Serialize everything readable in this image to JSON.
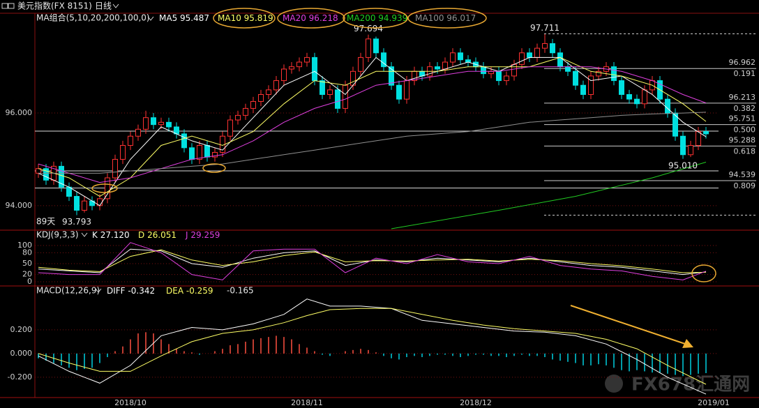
{
  "header": {
    "symbol": "美元指数(FX 8151)",
    "period": "日线"
  },
  "watermark": "FX678汇通网",
  "chart_data": [
    {
      "type": "candlestick",
      "indicator": "MA组合(5,10,20,200,100,0)",
      "up_color": "#ff3232",
      "down_color": "#00e0e0",
      "grid": true,
      "ylim": [
        93.47,
        98.14
      ],
      "yticks": [
        {
          "value": 96,
          "label": "96.000"
        },
        {
          "value": 94,
          "label": "94.000"
        }
      ],
      "open": [
        94.7,
        94.8,
        94.55,
        94.85,
        94.4,
        94.2,
        93.9,
        94.1,
        94.0,
        94.15,
        94.6,
        95.0,
        95.3,
        95.5,
        95.65,
        95.9,
        95.75,
        95.8,
        95.7,
        95.55,
        95.25,
        95.0,
        95.3,
        95.05,
        95.15,
        95.5,
        95.85,
        95.95,
        96.1,
        96.25,
        96.4,
        96.5,
        96.7,
        96.95,
        97.0,
        97.1,
        97.2,
        96.7,
        96.4,
        96.5,
        96.1,
        96.6,
        96.9,
        97.2,
        97.6,
        97.3,
        97.0,
        96.6,
        96.3,
        96.7,
        96.9,
        96.8,
        97.0,
        96.95,
        97.1,
        97.3,
        97.15,
        97.1,
        97.0,
        96.85,
        96.9,
        96.7,
        96.8,
        97.05,
        97.3,
        97.2,
        97.4,
        97.5,
        97.3,
        97.0,
        96.9,
        96.6,
        96.4,
        96.8,
        96.9,
        97.0,
        96.7,
        96.4,
        96.3,
        96.2,
        96.5,
        96.7,
        96.3,
        96.0,
        95.5,
        95.1,
        95.3,
        95.6
      ],
      "high": [
        94.9,
        94.9,
        94.95,
        94.95,
        94.5,
        94.3,
        94.2,
        94.2,
        94.25,
        94.7,
        95.1,
        95.4,
        95.6,
        95.75,
        96.05,
        96.0,
        95.9,
        95.9,
        95.8,
        95.65,
        95.35,
        95.4,
        95.4,
        95.25,
        95.6,
        95.95,
        96.05,
        96.2,
        96.35,
        96.5,
        96.6,
        96.8,
        97.05,
        97.1,
        97.2,
        97.3,
        97.3,
        96.8,
        96.6,
        96.6,
        96.7,
        97.0,
        97.3,
        97.694,
        97.65,
        97.4,
        97.1,
        96.7,
        96.8,
        97.0,
        97.0,
        97.1,
        97.1,
        97.2,
        97.4,
        97.4,
        97.25,
        97.2,
        97.1,
        97.0,
        97.0,
        96.9,
        97.15,
        97.4,
        97.4,
        97.5,
        97.711,
        97.6,
        97.4,
        97.1,
        97.0,
        96.7,
        96.9,
        97.0,
        97.1,
        97.1,
        96.8,
        96.5,
        96.4,
        96.6,
        96.8,
        96.8,
        96.4,
        96.1,
        95.6,
        95.4,
        95.7,
        95.7
      ],
      "low": [
        94.6,
        94.45,
        94.45,
        94.3,
        94.1,
        93.793,
        93.85,
        93.9,
        93.9,
        94.05,
        94.5,
        94.9,
        95.2,
        95.4,
        95.55,
        95.65,
        95.65,
        95.6,
        95.45,
        95.15,
        94.9,
        94.9,
        94.95,
        94.95,
        95.05,
        95.4,
        95.75,
        95.85,
        96.0,
        96.15,
        96.3,
        96.4,
        96.6,
        96.85,
        96.9,
        97.0,
        96.6,
        96.3,
        96.3,
        96.0,
        96.0,
        96.5,
        96.8,
        97.1,
        97.2,
        96.9,
        96.5,
        96.2,
        96.2,
        96.6,
        96.7,
        96.7,
        96.85,
        96.85,
        97.0,
        97.05,
        97.0,
        96.9,
        96.75,
        96.75,
        96.6,
        96.6,
        96.7,
        96.95,
        97.1,
        97.1,
        97.3,
        97.2,
        96.9,
        96.8,
        96.5,
        96.3,
        96.3,
        96.7,
        96.8,
        96.6,
        96.3,
        96.2,
        96.1,
        96.1,
        96.4,
        96.2,
        95.9,
        95.4,
        95.01,
        95.05,
        95.2,
        95.45
      ],
      "close": [
        94.8,
        94.55,
        94.85,
        94.4,
        94.2,
        93.9,
        94.1,
        94.0,
        94.15,
        94.6,
        95.0,
        95.3,
        95.5,
        95.65,
        95.9,
        95.75,
        95.8,
        95.7,
        95.55,
        95.25,
        95.0,
        95.3,
        95.05,
        95.15,
        95.5,
        95.85,
        95.95,
        96.1,
        96.25,
        96.4,
        96.5,
        96.7,
        96.95,
        97.0,
        97.1,
        97.2,
        96.7,
        96.4,
        96.5,
        96.1,
        96.6,
        96.9,
        97.2,
        97.6,
        97.3,
        97.0,
        96.6,
        96.3,
        96.7,
        96.9,
        96.8,
        97.0,
        96.95,
        97.1,
        97.3,
        97.15,
        97.1,
        97.0,
        96.85,
        96.9,
        96.7,
        96.8,
        97.05,
        97.3,
        97.2,
        97.4,
        97.5,
        97.3,
        97.0,
        96.9,
        96.6,
        96.4,
        96.8,
        96.9,
        97.0,
        96.7,
        96.4,
        96.3,
        96.2,
        96.5,
        96.7,
        96.3,
        96.0,
        95.5,
        95.1,
        95.3,
        95.6,
        95.55
      ],
      "lines": [
        {
          "name": "MA5",
          "last": 95.487,
          "color": "#ffffff",
          "x": [
            0,
            4,
            8,
            12,
            16,
            20,
            24,
            28,
            32,
            36,
            40,
            44,
            48,
            52,
            56,
            60,
            64,
            68,
            72,
            76,
            80,
            84,
            87
          ],
          "values": [
            94.7,
            94.4,
            94.0,
            95.0,
            95.7,
            95.4,
            95.2,
            95.9,
            96.6,
            96.9,
            96.4,
            97.2,
            96.7,
            96.9,
            97.1,
            96.9,
            97.2,
            97.2,
            96.7,
            96.8,
            96.4,
            95.8,
            95.487
          ]
        },
        {
          "name": "MA10",
          "last": 95.819,
          "color": "#ffff66",
          "x": [
            0,
            4,
            8,
            12,
            16,
            20,
            24,
            28,
            32,
            36,
            40,
            44,
            48,
            52,
            56,
            60,
            64,
            68,
            72,
            76,
            80,
            84,
            87
          ],
          "values": [
            94.8,
            94.6,
            94.2,
            94.6,
            95.3,
            95.5,
            95.3,
            95.6,
            96.2,
            96.7,
            96.6,
            96.9,
            96.9,
            96.9,
            97.0,
            97.0,
            97.0,
            97.2,
            96.9,
            96.8,
            96.6,
            96.2,
            95.819
          ]
        },
        {
          "name": "MA20",
          "last": 96.218,
          "color": "#e040e0",
          "x": [
            0,
            4,
            8,
            12,
            16,
            20,
            24,
            28,
            32,
            36,
            40,
            44,
            48,
            52,
            56,
            60,
            64,
            68,
            72,
            76,
            80,
            84,
            87
          ],
          "values": [
            94.9,
            94.7,
            94.5,
            94.6,
            94.8,
            95.0,
            95.1,
            95.4,
            95.8,
            96.1,
            96.3,
            96.6,
            96.7,
            96.8,
            96.9,
            96.9,
            97.0,
            97.0,
            97.0,
            96.9,
            96.7,
            96.4,
            96.218
          ]
        },
        {
          "name": "MA200",
          "last": 94.939,
          "color": "#22cc22",
          "x": [
            46,
            60,
            70,
            80,
            87
          ],
          "values": [
            93.5,
            93.9,
            94.2,
            94.6,
            94.939
          ]
        },
        {
          "name": "MA100",
          "last": 96.017,
          "color": "#909090",
          "x": [
            0,
            4,
            8,
            12,
            16,
            20,
            24,
            28,
            32,
            36,
            40,
            44,
            48,
            52,
            56,
            60,
            64,
            68,
            72,
            76,
            80,
            84,
            87
          ],
          "values": [
            94.7,
            94.7,
            94.7,
            94.75,
            94.8,
            94.85,
            94.9,
            95.0,
            95.1,
            95.2,
            95.3,
            95.4,
            95.5,
            95.55,
            95.6,
            95.7,
            95.8,
            95.85,
            95.9,
            95.95,
            95.98,
            96.0,
            96.017
          ]
        }
      ],
      "horizontal_lines": [
        95.61,
        94.75,
        94.38
      ],
      "fib_levels": [
        {
          "value": 96.962,
          "ratio": "0.191"
        },
        {
          "value": 96.213,
          "ratio": "0.382"
        },
        {
          "value": 95.751,
          "ratio": "0.500"
        },
        {
          "value": 95.288,
          "ratio": "0.618"
        },
        {
          "value": 94.539,
          "ratio": "0.809"
        }
      ],
      "price_labels": [
        {
          "index": 43,
          "value": 97.694,
          "color": "#ff4040"
        },
        {
          "index": 66,
          "value": 97.711,
          "color": "#ff4040",
          "level_line": true
        },
        {
          "index": 5,
          "value": 93.793,
          "color": "#00e0e0",
          "level_line": true
        },
        {
          "index": 84,
          "value": {
            "value": 95.01,
            "label": "95.010"
          },
          "color": "#00e0e0"
        }
      ],
      "span_label": "89天"
    },
    {
      "type": "line",
      "indicator": "KDJ(9,3,3)",
      "grid": true,
      "ylim": [
        -7.7,
        111.5
      ],
      "yticks": [
        100,
        80,
        50,
        20,
        0
      ],
      "series": [
        {
          "name": "K",
          "last": {
            "value": 27.12,
            "label": "27.120"
          },
          "color": "#ffffff",
          "x": [
            0,
            4,
            8,
            12,
            16,
            20,
            24,
            28,
            32,
            36,
            40,
            44,
            48,
            52,
            56,
            60,
            64,
            68,
            72,
            76,
            80,
            84,
            87
          ],
          "values": [
            35,
            30,
            25,
            90,
            85,
            50,
            40,
            65,
            80,
            85,
            45,
            60,
            55,
            65,
            60,
            55,
            65,
            55,
            45,
            40,
            30,
            20,
            27.12
          ]
        },
        {
          "name": "D",
          "last": 26.051,
          "color": "#ffff66",
          "x": [
            0,
            4,
            8,
            12,
            16,
            20,
            24,
            28,
            32,
            36,
            40,
            44,
            48,
            52,
            56,
            60,
            64,
            68,
            72,
            76,
            80,
            84,
            87
          ],
          "values": [
            40,
            32,
            28,
            70,
            88,
            60,
            45,
            55,
            72,
            82,
            55,
            58,
            57,
            60,
            62,
            57,
            62,
            58,
            50,
            44,
            35,
            25,
            26.051
          ]
        },
        {
          "name": "J",
          "last": 29.259,
          "color": "#e040e0",
          "x": [
            0,
            4,
            8,
            12,
            16,
            20,
            24,
            28,
            32,
            36,
            40,
            44,
            48,
            52,
            56,
            60,
            64,
            68,
            72,
            76,
            80,
            84,
            87
          ],
          "values": [
            25,
            20,
            20,
            108,
            80,
            20,
            5,
            85,
            90,
            90,
            25,
            65,
            50,
            75,
            55,
            50,
            70,
            45,
            35,
            30,
            15,
            5,
            29.259
          ]
        }
      ]
    },
    {
      "type": "macd",
      "indicator": "MACD(12,26,9)",
      "grid": true,
      "ylim": [
        -0.371,
        0.482
      ],
      "yticks": [
        {
          "value": 0.2,
          "label": "0.200"
        },
        {
          "value": 0,
          "label": "0.000"
        },
        {
          "value": -0.2,
          "label": "-0.200"
        }
      ],
      "xticks": [
        {
          "value": 12,
          "label": "2018/10"
        },
        {
          "value": 35,
          "label": "2018/11"
        },
        {
          "value": 57,
          "label": "2018/12"
        },
        {
          "value": 88,
          "label": "2019/01"
        }
      ],
      "series": [
        {
          "name": "DIFF",
          "last": -0.342,
          "color": "#ffffff",
          "x": [
            0,
            4,
            8,
            12,
            16,
            20,
            24,
            28,
            32,
            35,
            38,
            42,
            46,
            50,
            54,
            58,
            62,
            66,
            70,
            74,
            78,
            82,
            87
          ],
          "values": [
            -0.02,
            -0.15,
            -0.25,
            -0.1,
            0.15,
            0.22,
            0.2,
            0.25,
            0.33,
            0.46,
            0.4,
            0.4,
            0.38,
            0.28,
            0.25,
            0.22,
            0.19,
            0.18,
            0.15,
            0.08,
            -0.05,
            -0.2,
            -0.342
          ]
        },
        {
          "name": "DEA",
          "last": -0.259,
          "color": "#ffff66",
          "x": [
            0,
            4,
            8,
            12,
            16,
            20,
            24,
            28,
            32,
            35,
            38,
            42,
            46,
            50,
            54,
            58,
            62,
            66,
            70,
            74,
            78,
            82,
            87
          ],
          "values": [
            0.0,
            -0.08,
            -0.15,
            -0.15,
            -0.02,
            0.1,
            0.17,
            0.2,
            0.26,
            0.32,
            0.37,
            0.38,
            0.38,
            0.33,
            0.28,
            0.24,
            0.21,
            0.19,
            0.17,
            0.12,
            0.04,
            -0.1,
            -0.259
          ]
        }
      ],
      "bars": {
        "up_color": "#ff5040",
        "down_color": "#00d0e0",
        "values": [
          -0.04,
          -0.06,
          -0.08,
          -0.1,
          -0.12,
          -0.14,
          -0.13,
          -0.12,
          -0.08,
          -0.03,
          0.02,
          0.06,
          0.12,
          0.17,
          0.18,
          0.17,
          0.12,
          0.08,
          0.04,
          0.02,
          0.01,
          -0.01,
          0.0,
          0.02,
          0.04,
          0.07,
          0.08,
          0.1,
          0.12,
          0.13,
          0.14,
          0.15,
          0.14,
          0.12,
          0.08,
          0.05,
          0.02,
          -0.01,
          -0.02,
          0.0,
          0.02,
          0.03,
          0.04,
          0.03,
          0.01,
          -0.02,
          -0.04,
          -0.05,
          -0.03,
          -0.02,
          -0.03,
          -0.02,
          -0.01,
          -0.01,
          -0.02,
          -0.03,
          -0.02,
          -0.01,
          -0.01,
          -0.02,
          -0.02,
          -0.03,
          -0.02,
          -0.01,
          -0.02,
          -0.02,
          -0.03,
          -0.05,
          -0.06,
          -0.07,
          -0.08,
          -0.1,
          -0.1,
          -0.09,
          -0.1,
          -0.12,
          -0.14,
          -0.15,
          -0.14,
          -0.15,
          -0.16,
          -0.16,
          -0.17,
          -0.18,
          -0.19,
          -0.18,
          -0.17,
          -0.165
        ]
      }
    }
  ]
}
